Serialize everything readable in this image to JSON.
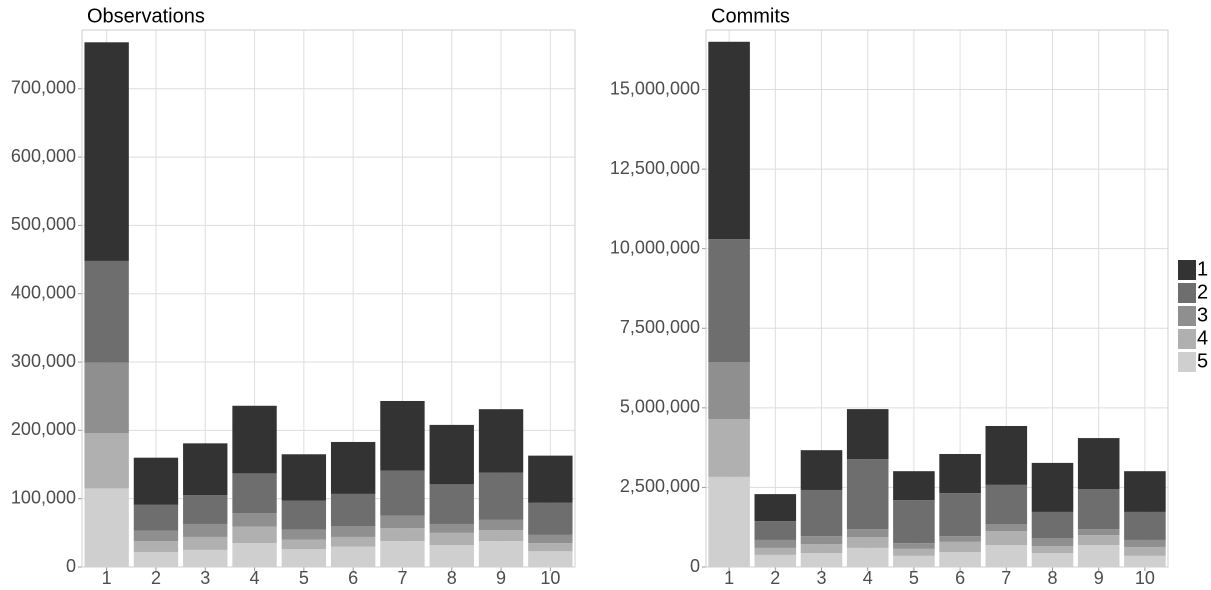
{
  "chart_data": [
    {
      "type": "stacked_bar",
      "title": "Observations",
      "categories": [
        "1",
        "2",
        "3",
        "4",
        "5",
        "6",
        "7",
        "8",
        "9",
        "10"
      ],
      "series": [
        {
          "name": "5",
          "color": "#cfcfcf",
          "values": [
            115000,
            22000,
            25000,
            35000,
            26000,
            30000,
            38000,
            32000,
            38000,
            23000
          ]
        },
        {
          "name": "4",
          "color": "#b0b0b0",
          "values": [
            81000,
            16000,
            19000,
            24000,
            14000,
            14000,
            19000,
            18000,
            16000,
            12000
          ]
        },
        {
          "name": "3",
          "color": "#8f8f8f",
          "values": [
            103000,
            15000,
            19000,
            20000,
            15000,
            16000,
            18000,
            13000,
            15000,
            12000
          ]
        },
        {
          "name": "2",
          "color": "#6e6e6e",
          "values": [
            149000,
            38000,
            42000,
            58000,
            42000,
            47000,
            66000,
            58000,
            69000,
            47000
          ]
        },
        {
          "name": "1",
          "color": "#333333",
          "values": [
            320000,
            69000,
            76000,
            99000,
            68000,
            76000,
            102000,
            87000,
            93000,
            69000
          ]
        }
      ],
      "ylim": [
        0,
        786000
      ],
      "yticks": [
        0,
        {
          "value": 100000,
          "label": "100,000"
        },
        {
          "value": 200000,
          "label": "200,000"
        },
        {
          "value": 300000,
          "label": "300,000"
        },
        {
          "value": 400000,
          "label": "400,000"
        },
        {
          "value": 500000,
          "label": "500,000"
        },
        {
          "value": 600000,
          "label": "600,000"
        },
        {
          "value": 700000,
          "label": "700,000"
        }
      ],
      "grid": true,
      "legend": "right"
    },
    {
      "type": "stacked_bar",
      "title": "Commits",
      "categories": [
        "1",
        "2",
        "3",
        "4",
        "5",
        "6",
        "7",
        "8",
        "9",
        "10"
      ],
      "series": [
        {
          "name": "5",
          "color": "#cfcfcf",
          "values": [
            2830000,
            380000,
            440000,
            600000,
            350000,
            470000,
            690000,
            440000,
            690000,
            350000
          ]
        },
        {
          "name": "4",
          "color": "#b0b0b0",
          "values": [
            1820000,
            220000,
            280000,
            340000,
            220000,
            320000,
            440000,
            220000,
            310000,
            280000
          ]
        },
        {
          "name": "3",
          "color": "#8f8f8f",
          "values": [
            1790000,
            250000,
            250000,
            250000,
            180000,
            180000,
            220000,
            250000,
            190000,
            220000
          ]
        },
        {
          "name": "2",
          "color": "#6e6e6e",
          "values": [
            3860000,
            590000,
            1450000,
            2200000,
            1350000,
            1350000,
            1230000,
            820000,
            1260000,
            880000
          ]
        },
        {
          "name": "1",
          "color": "#333333",
          "values": [
            6200000,
            850000,
            1250000,
            1570000,
            910000,
            1230000,
            1850000,
            1540000,
            1600000,
            1280000
          ]
        }
      ],
      "ylim": [
        0,
        16870000
      ],
      "yticks": [
        0,
        {
          "value": 2500000,
          "label": "2,500,000"
        },
        {
          "value": 5000000,
          "label": "5,000,000"
        },
        {
          "value": 7500000,
          "label": "7,500,000"
        },
        {
          "value": 10000000,
          "label": "10,000,000"
        },
        {
          "value": 12500000,
          "label": "12,500,000"
        },
        {
          "value": 15000000,
          "label": "15,000,000"
        }
      ],
      "grid": true
    }
  ]
}
